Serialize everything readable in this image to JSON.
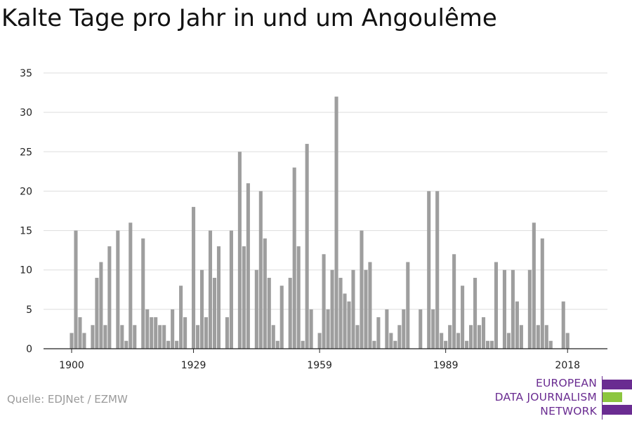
{
  "title": "Kalte Tage pro Jahr in und um Angoulême",
  "source": "Quelle: EDJNet / EZMW",
  "logo": {
    "lines": [
      "EUROPEAN",
      "DATA JOURNALISM",
      "NETWORK"
    ],
    "colors": {
      "purple": "#6a2c91",
      "green": "#8cc63f"
    }
  },
  "colors": {
    "bar": "#9e9e9e",
    "grid": "#dddddd",
    "axis": "#222222",
    "text": "#222222"
  },
  "chart_data": {
    "type": "bar",
    "title": "Kalte Tage pro Jahr in und um Angoulême",
    "xlabel": "",
    "ylabel": "",
    "ylim": [
      0,
      35
    ],
    "yticks": [
      0,
      5,
      10,
      15,
      20,
      25,
      30,
      35
    ],
    "xticks": [
      1900,
      1929,
      1959,
      1989,
      2018
    ],
    "grid": true,
    "legend": "none",
    "x": [
      1900,
      1901,
      1902,
      1903,
      1904,
      1905,
      1906,
      1907,
      1908,
      1909,
      1910,
      1911,
      1912,
      1913,
      1914,
      1915,
      1916,
      1917,
      1918,
      1919,
      1920,
      1921,
      1922,
      1923,
      1924,
      1925,
      1926,
      1927,
      1928,
      1929,
      1930,
      1931,
      1932,
      1933,
      1934,
      1935,
      1936,
      1937,
      1938,
      1939,
      1940,
      1941,
      1942,
      1943,
      1944,
      1945,
      1946,
      1947,
      1948,
      1949,
      1950,
      1951,
      1952,
      1953,
      1954,
      1955,
      1956,
      1957,
      1958,
      1959,
      1960,
      1961,
      1962,
      1963,
      1964,
      1965,
      1966,
      1967,
      1968,
      1969,
      1970,
      1971,
      1972,
      1973,
      1974,
      1975,
      1976,
      1977,
      1978,
      1979,
      1980,
      1981,
      1982,
      1983,
      1984,
      1985,
      1986,
      1987,
      1988,
      1989,
      1990,
      1991,
      1992,
      1993,
      1994,
      1995,
      1996,
      1997,
      1998,
      1999,
      2000,
      2001,
      2002,
      2003,
      2004,
      2005,
      2006,
      2007,
      2008,
      2009,
      2010,
      2011,
      2012,
      2013,
      2014,
      2015,
      2016,
      2017,
      2018,
      2019
    ],
    "values": [
      2,
      15,
      4,
      2,
      0,
      3,
      9,
      11,
      3,
      13,
      0,
      15,
      3,
      1,
      16,
      3,
      0,
      14,
      5,
      4,
      4,
      3,
      3,
      1,
      5,
      1,
      8,
      4,
      0,
      18,
      3,
      10,
      4,
      15,
      9,
      13,
      0,
      4,
      15,
      0,
      25,
      13,
      21,
      0,
      10,
      20,
      14,
      9,
      3,
      1,
      8,
      0,
      9,
      23,
      13,
      1,
      26,
      5,
      0,
      2,
      12,
      5,
      10,
      32,
      9,
      7,
      6,
      10,
      3,
      15,
      10,
      11,
      1,
      4,
      0,
      5,
      2,
      1,
      3,
      5,
      11,
      0,
      0,
      5,
      0,
      20,
      5,
      20,
      2,
      1,
      3,
      12,
      2,
      8,
      1,
      3,
      9,
      3,
      4,
      1,
      1,
      11,
      0,
      10,
      2,
      10,
      6,
      3,
      0,
      10,
      16,
      3,
      14,
      3,
      1,
      0,
      0,
      6,
      2,
      0
    ]
  }
}
